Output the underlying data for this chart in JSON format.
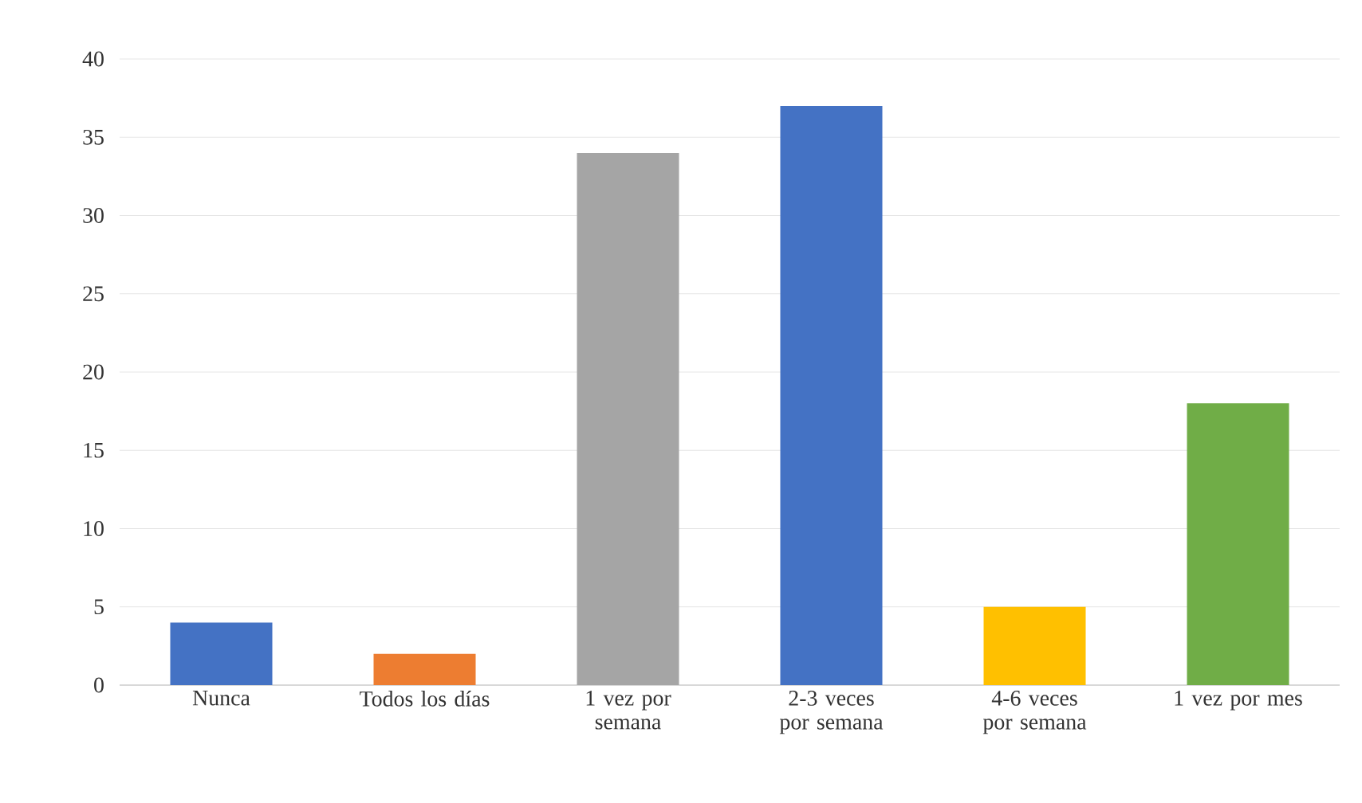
{
  "chart_data": {
    "type": "bar",
    "categories": [
      "Nunca",
      "Todos los días",
      "1 vez por semana",
      "2-3 veces por semana",
      "4-6 veces por semana",
      "1 vez por mes"
    ],
    "values": [
      4,
      2,
      34,
      37,
      5,
      18
    ],
    "colors": [
      "#4472c4",
      "#ed7d31",
      "#a5a5a5",
      "#4472c4",
      "#ffc000",
      "#70ad47"
    ],
    "ylim": [
      0,
      40
    ],
    "yticks": [
      0,
      5,
      10,
      15,
      20,
      25,
      30,
      35,
      40
    ],
    "grid": "y"
  }
}
